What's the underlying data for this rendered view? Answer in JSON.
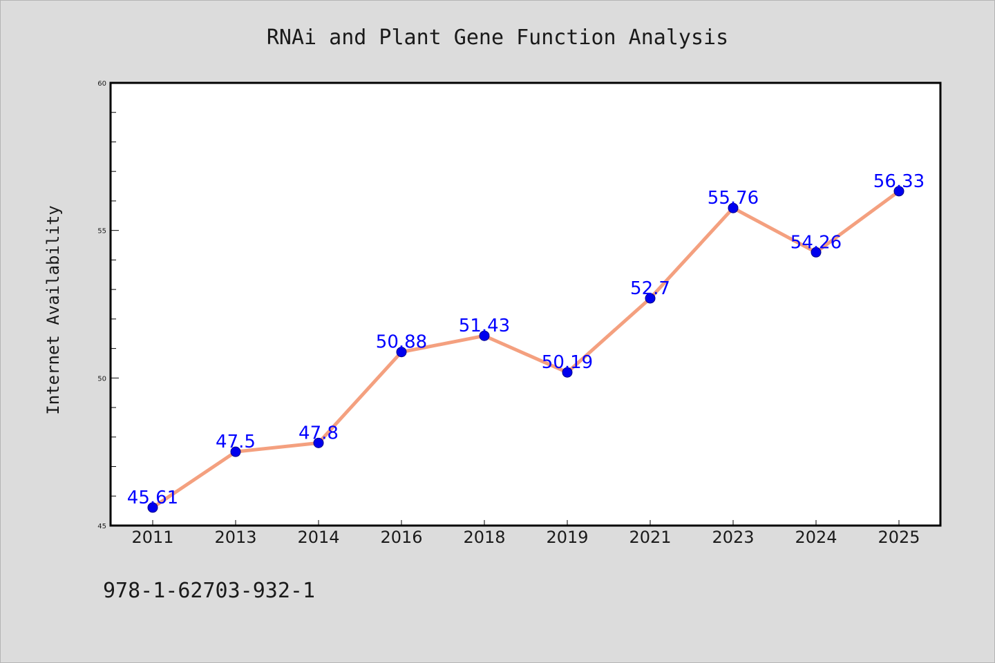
{
  "colors": {
    "background": "#dcdcdc",
    "plot_background": "#ffffff",
    "line": "#f4a07f",
    "marker": "#0000ee",
    "data_label": "#0000ff"
  },
  "footer": {
    "isbn": "978-1-62703-932-1"
  },
  "chart_data": {
    "type": "line",
    "title": "RNAi and Plant Gene Function Analysis",
    "xlabel": "",
    "ylabel": "Internet Availability",
    "categories": [
      "2011",
      "2013",
      "2014",
      "2016",
      "2018",
      "2019",
      "2021",
      "2023",
      "2024",
      "2025"
    ],
    "series": [
      {
        "values": [
          45.61,
          47.5,
          47.8,
          50.88,
          51.43,
          50.19,
          52.7,
          55.76,
          54.26,
          56.33
        ],
        "labels": [
          "45.61",
          "47.5",
          "47.8",
          "50.88",
          "51.43",
          "50.19",
          "52.7",
          "55.76",
          "54.26",
          "56.33"
        ]
      }
    ],
    "ylim": [
      45,
      60
    ],
    "yticks_major": [
      "45",
      "50",
      "55",
      "60"
    ],
    "grid": false,
    "legend": "none"
  }
}
